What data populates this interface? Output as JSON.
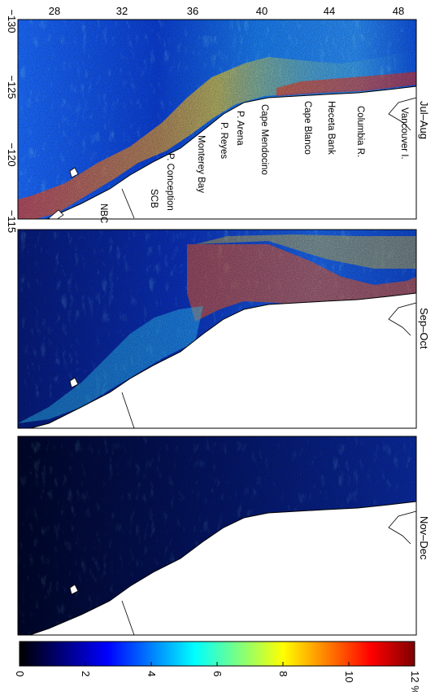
{
  "figure": {
    "latitude_ticks": [
      "28",
      "32",
      "36",
      "40",
      "44",
      "48"
    ],
    "longitude_ticks": [
      "−130",
      "−125",
      "−120",
      "−115"
    ],
    "panels": [
      {
        "period": "Jul–Aug"
      },
      {
        "period": "Sep–Oct"
      },
      {
        "period": "Nov–Dec"
      }
    ],
    "places": [
      "Vancouver I.",
      "Columbia R.",
      "Heceta Bank",
      "Cape Blanco",
      "Cape Mendocino",
      "P. Arena",
      "P. Reyes",
      "Monterey Bay",
      "P. Conception",
      "SCB",
      "NBC"
    ],
    "colorbar": {
      "ticks": [
        "0",
        "2",
        "4",
        "6",
        "8",
        "10",
        "12 %"
      ],
      "min": 0,
      "max": 12,
      "colors": [
        "#000000",
        "#00007f",
        "#0000ff",
        "#007fff",
        "#00ffff",
        "#7fff7f",
        "#ffff00",
        "#ff7f00",
        "#ff0000",
        "#7f0000"
      ]
    }
  }
}
